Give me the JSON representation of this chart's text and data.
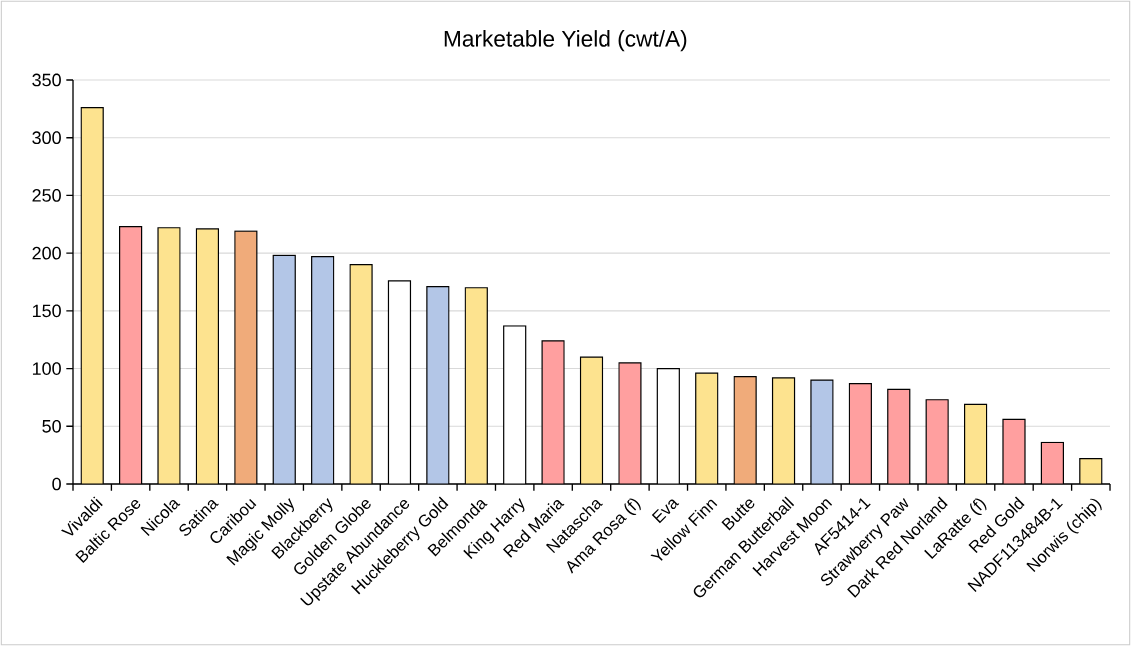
{
  "chart_data": {
    "type": "bar",
    "title": "Marketable Yield (cwt/A)",
    "categories": [
      "Vivaldi",
      "Baltic Rose",
      "Nicola",
      "Satina",
      "Caribou",
      "Magic Molly",
      "Blackberry",
      "Golden Globe",
      "Upstate Abundance",
      "Huckleberry Gold",
      "Belmonda",
      "King Harry",
      "Red Maria",
      "Natascha",
      "Ama Rosa (f)",
      "Eva",
      "Yellow Finn",
      "Butte",
      "German Butterball",
      "Harvest Moon",
      "AF5414-1",
      "Strawberry Paw",
      "Dark Red Norland",
      "LaRatte (f)",
      "Red Gold",
      "NADF113484B-1",
      "Norwis (chip)"
    ],
    "values": [
      326,
      223,
      222,
      221,
      219,
      198,
      197,
      190,
      176,
      171,
      170,
      137,
      124,
      110,
      105,
      100,
      96,
      93,
      92,
      90,
      87,
      82,
      73,
      69,
      56,
      36,
      22
    ],
    "colors": [
      "#fde38f",
      "#ff9f9f",
      "#fde38f",
      "#fde38f",
      "#f0ab7a",
      "#b3c6e7",
      "#b3c6e7",
      "#fde38f",
      "#ffffff",
      "#b3c6e7",
      "#fde38f",
      "#ffffff",
      "#ff9f9f",
      "#fde38f",
      "#ff9f9f",
      "#ffffff",
      "#fde38f",
      "#f0ab7a",
      "#fde38f",
      "#b3c6e7",
      "#ff9f9f",
      "#ff9f9f",
      "#ff9f9f",
      "#fde38f",
      "#ff9f9f",
      "#ff9f9f",
      "#fde38f"
    ],
    "ylim": [
      0,
      350
    ],
    "yticks": [
      0,
      50,
      100,
      150,
      200,
      250,
      300,
      350
    ],
    "grid": "y"
  }
}
